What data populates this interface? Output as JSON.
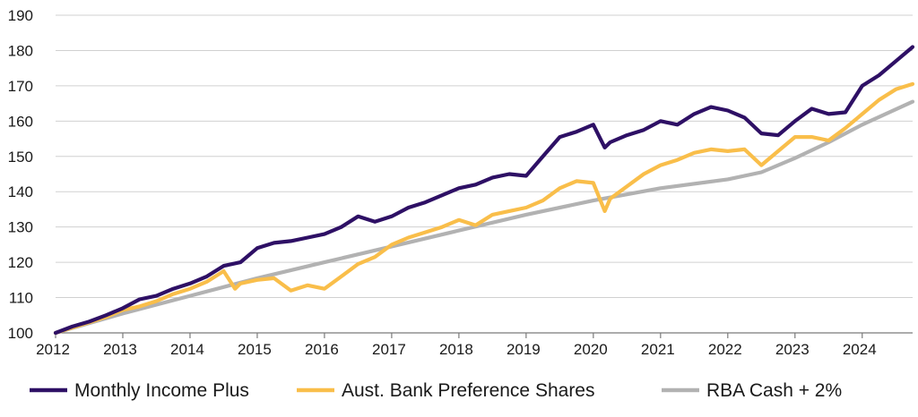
{
  "chart_data": {
    "type": "line",
    "title": "",
    "xlabel": "",
    "ylabel": "",
    "ylim": [
      100,
      190
    ],
    "yticks": [
      100,
      110,
      120,
      130,
      140,
      150,
      160,
      170,
      180,
      190
    ],
    "xlim": [
      2012,
      2024.75
    ],
    "xticks": [
      "2012",
      "2013",
      "2014",
      "2015",
      "2016",
      "2017",
      "2018",
      "2019",
      "2020",
      "2021",
      "2022",
      "2023",
      "2024"
    ],
    "grid": "horizontal",
    "legend_position": "bottom",
    "series": [
      {
        "name": "Monthly Income Plus",
        "color": "#2e1065",
        "x": [
          2012.0,
          2012.25,
          2012.5,
          2012.75,
          2013.0,
          2013.25,
          2013.5,
          2013.75,
          2014.0,
          2014.25,
          2014.5,
          2014.75,
          2015.0,
          2015.25,
          2015.5,
          2015.75,
          2016.0,
          2016.25,
          2016.5,
          2016.75,
          2017.0,
          2017.25,
          2017.5,
          2017.75,
          2018.0,
          2018.25,
          2018.5,
          2018.75,
          2019.0,
          2019.25,
          2019.5,
          2019.75,
          2020.0,
          2020.17,
          2020.25,
          2020.5,
          2020.75,
          2021.0,
          2021.25,
          2021.5,
          2021.75,
          2022.0,
          2022.25,
          2022.5,
          2022.75,
          2023.0,
          2023.25,
          2023.5,
          2023.75,
          2024.0,
          2024.25,
          2024.5,
          2024.75
        ],
        "values": [
          100,
          101.8,
          103.2,
          105,
          107,
          109.5,
          110.5,
          112.5,
          114,
          116,
          119,
          120,
          124,
          125.5,
          126,
          127,
          128,
          130,
          133,
          131.5,
          133,
          135.5,
          137,
          139,
          141,
          142,
          144,
          145,
          144.5,
          150,
          155.5,
          157,
          159,
          152.5,
          154,
          156,
          157.5,
          160,
          159,
          162,
          164,
          163,
          161,
          156.5,
          156,
          160,
          163.5,
          162,
          162.5,
          170,
          173,
          177,
          181
        ]
      },
      {
        "name": "Aust. Bank Preference Shares",
        "color": "#f9be4a",
        "x": [
          2012.0,
          2012.25,
          2012.5,
          2012.75,
          2013.0,
          2013.25,
          2013.5,
          2013.75,
          2014.0,
          2014.25,
          2014.5,
          2014.67,
          2014.75,
          2015.0,
          2015.25,
          2015.5,
          2015.75,
          2016.0,
          2016.25,
          2016.5,
          2016.75,
          2017.0,
          2017.25,
          2017.5,
          2017.75,
          2018.0,
          2018.25,
          2018.5,
          2018.75,
          2019.0,
          2019.25,
          2019.5,
          2019.75,
          2020.0,
          2020.17,
          2020.25,
          2020.5,
          2020.75,
          2021.0,
          2021.25,
          2021.5,
          2021.75,
          2022.0,
          2022.25,
          2022.5,
          2022.75,
          2023.0,
          2023.25,
          2023.5,
          2023.75,
          2024.0,
          2024.25,
          2024.5,
          2024.75
        ],
        "values": [
          100,
          101.5,
          103,
          104.5,
          106.5,
          107.5,
          109,
          111,
          112.5,
          114.5,
          117.5,
          112.5,
          114,
          115,
          115.5,
          112,
          113.5,
          112.5,
          116,
          119.5,
          121.5,
          125,
          127,
          128.5,
          130,
          132,
          130.5,
          133.5,
          134.5,
          135.5,
          137.5,
          141,
          143,
          142.5,
          134.5,
          138,
          141.5,
          145,
          147.5,
          149,
          151,
          152,
          151.5,
          152,
          147.5,
          151.5,
          155.5,
          155.5,
          154.5,
          158,
          162,
          166,
          169,
          170.5
        ]
      },
      {
        "name": "RBA Cash + 2%",
        "color": "#b2b2b2",
        "x": [
          2012.0,
          2013.0,
          2014.0,
          2015.0,
          2016.0,
          2017.0,
          2018.0,
          2019.0,
          2020.0,
          2021.0,
          2022.0,
          2022.5,
          2023.0,
          2023.5,
          2024.0,
          2024.75
        ],
        "values": [
          100,
          105.5,
          110.5,
          115.5,
          120,
          124.5,
          129,
          133.5,
          137.5,
          141,
          143.5,
          145.5,
          149.5,
          154,
          159,
          165.5
        ]
      }
    ]
  }
}
